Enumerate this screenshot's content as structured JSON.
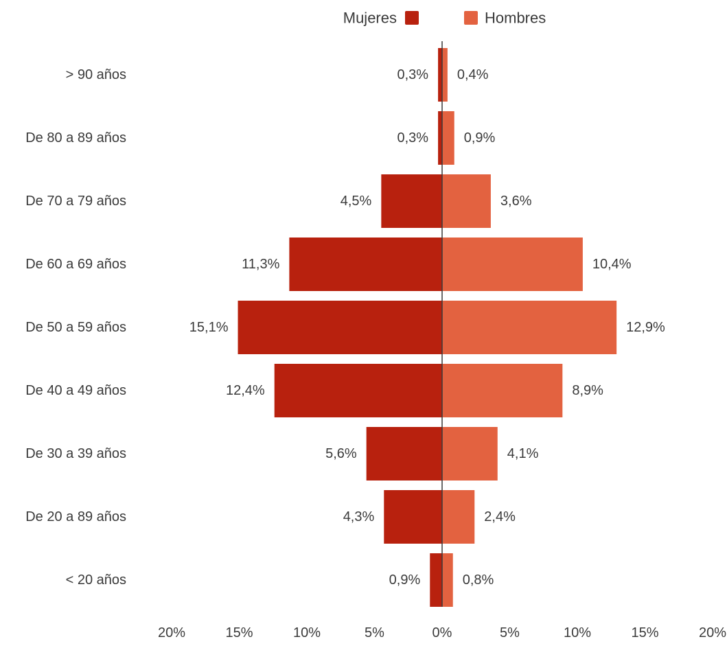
{
  "chart_data": {
    "type": "bar",
    "orientation": "horizontal-butterfly",
    "categories": [
      "> 90 años",
      "De 80 a 89 años",
      "De 70 a 79 años",
      "De 60 a 69 años",
      "De 50 a 59 años",
      "De 40 a 49 años",
      "De 30 a 39 años",
      "De 20 a 89 años",
      "< 20 años"
    ],
    "series": [
      {
        "name": "Mujeres",
        "color": "#b8210e",
        "side": "left",
        "values": [
          0.3,
          0.3,
          4.5,
          11.3,
          15.1,
          12.4,
          5.6,
          4.3,
          0.9
        ],
        "labels": [
          "0,3%",
          "0,3%",
          "4,5%",
          "11,3%",
          "15,1%",
          "12,4%",
          "5,6%",
          "4,3%",
          "0,9%"
        ]
      },
      {
        "name": "Hombres",
        "color": "#e36240",
        "side": "right",
        "values": [
          0.4,
          0.9,
          3.6,
          10.4,
          12.9,
          8.9,
          4.1,
          2.4,
          0.8
        ],
        "labels": [
          "0,4%",
          "0,9%",
          "3,6%",
          "10,4%",
          "12,9%",
          "8,9%",
          "4,1%",
          "2,4%",
          "0,8%"
        ]
      }
    ],
    "x_ticks": [
      -20,
      -15,
      -10,
      -5,
      0,
      5,
      10,
      15,
      20
    ],
    "x_tick_labels": [
      "20%",
      "15%",
      "10%",
      "5%",
      "0%",
      "5%",
      "10%",
      "15%",
      "20%"
    ],
    "xlim": [
      -20,
      20
    ],
    "legend_position": "top-center",
    "grid": false,
    "title": "",
    "xlabel": "",
    "ylabel": ""
  }
}
